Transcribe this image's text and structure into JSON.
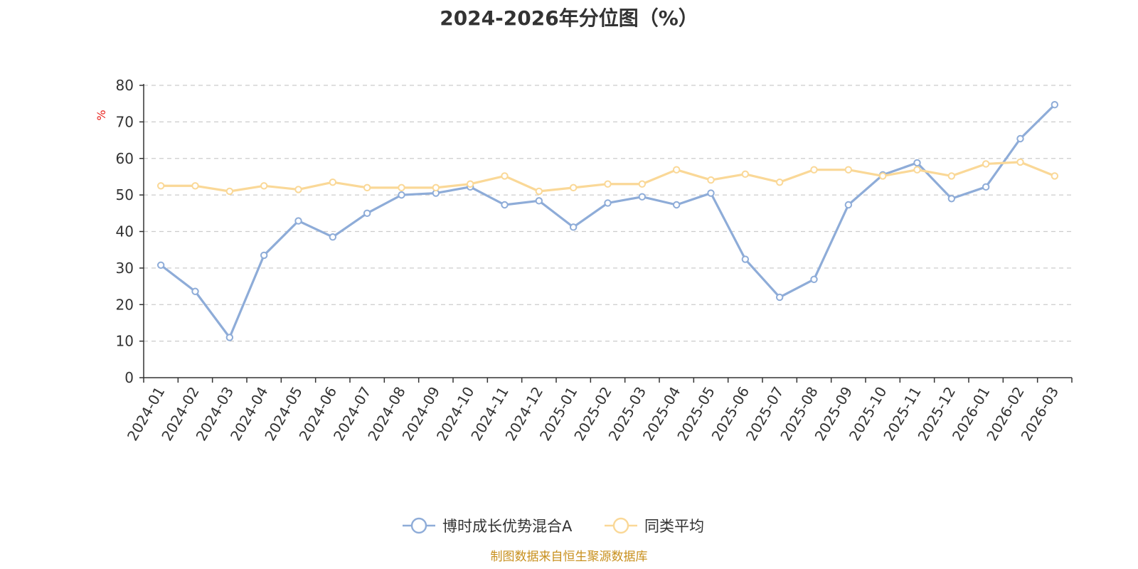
{
  "chart_data": {
    "type": "line",
    "title": "2024-2026年分位图（%）",
    "ylabel": "%",
    "ylim": [
      0,
      80
    ],
    "yticks": [
      0,
      10,
      20,
      30,
      40,
      50,
      60,
      70,
      80
    ],
    "grid": "horizontal dashed",
    "legend_position": "bottom-center",
    "categories": [
      "2024-01",
      "2024-02",
      "2024-03",
      "2024-04",
      "2024-05",
      "2024-06",
      "2024-07",
      "2024-08",
      "2024-09",
      "2024-10",
      "2024-11",
      "2024-12",
      "2025-01",
      "2025-02",
      "2025-03",
      "2025-04",
      "2025-05",
      "2025-06",
      "2025-07",
      "2025-08",
      "2025-09",
      "2025-10",
      "2025-11",
      "2025-12",
      "2026-01",
      "2026-02",
      "2026-03"
    ],
    "series": [
      {
        "name": "博时成长优势混合A",
        "color": "#8eacd8",
        "values": [
          30.8,
          23.6,
          11.0,
          33.5,
          42.9,
          38.5,
          45.0,
          50.0,
          50.5,
          52.2,
          47.3,
          48.4,
          41.2,
          47.8,
          49.5,
          47.3,
          50.5,
          32.4,
          22.0,
          26.9,
          47.3,
          55.5,
          58.8,
          49.0,
          52.2,
          65.4,
          74.7
        ]
      },
      {
        "name": "同类平均",
        "color": "#fad897",
        "values": [
          52.5,
          52.5,
          51.0,
          52.5,
          51.5,
          53.5,
          52.0,
          52.0,
          52.0,
          53.0,
          55.2,
          51.0,
          52.0,
          53.0,
          53.0,
          56.9,
          54.1,
          55.7,
          53.5,
          56.9,
          56.9,
          55.2,
          56.9,
          55.2,
          58.5,
          59.0,
          55.2
        ]
      }
    ]
  },
  "footer": {
    "source": "制图数据来自恒生聚源数据库"
  }
}
